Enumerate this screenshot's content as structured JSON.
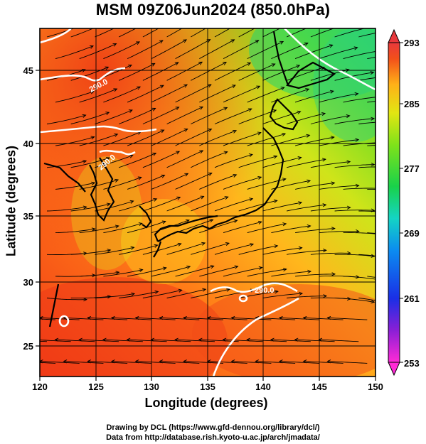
{
  "title": "MSM 09Z06Jun2024 (850.0hPa)",
  "xlabel": "Longitude (degrees)",
  "ylabel": "Latitude  (degrees)",
  "x_ticks": [
    "120",
    "125",
    "130",
    "135",
    "140",
    "145",
    "150"
  ],
  "y_ticks": [
    "25",
    "30",
    "35",
    "40",
    "45"
  ],
  "colorbar": {
    "ticks": [
      "293",
      "285",
      "277",
      "269",
      "261",
      "253"
    ],
    "min": 253,
    "max": 293,
    "colors": [
      "#ff2ad6",
      "#7a1fd6",
      "#1536e6",
      "#0ba3ee",
      "#16d6a8",
      "#19d24a",
      "#7fe21a",
      "#d6e612",
      "#ffd41a",
      "#ff8a14",
      "#f23a16",
      "#e8383c"
    ]
  },
  "contour_labels": [
    "290.0",
    "290.0",
    "290.0"
  ],
  "credits": {
    "line1": "Drawing by DCL (https://www.gfd-dennou.org/library/dcl/)",
    "line2": "Data from http://database.rish.kyoto-u.ac.jp/arch/jmadata/"
  },
  "map_colors": {
    "warm": "#f25a1a",
    "mid": "#ffb020",
    "cool": "#8ee21c",
    "cold": "#35d65a"
  }
}
